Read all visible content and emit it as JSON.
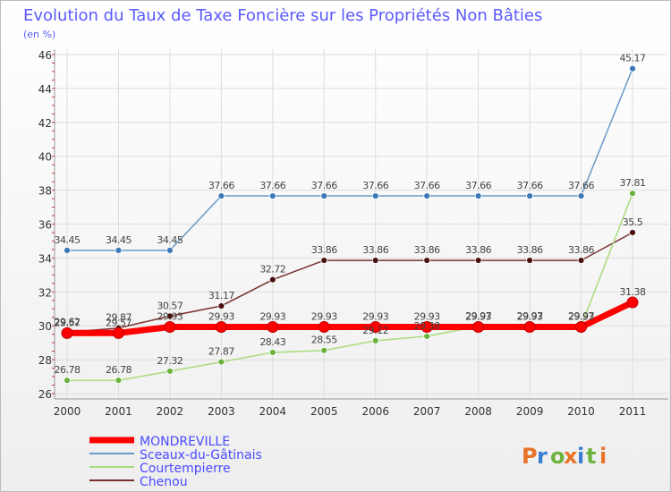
{
  "chart_data": {
    "type": "line",
    "title": "Evolution du Taux de Taxe Foncière sur les Propriétés Non Bâties",
    "ylabel": "(en %)",
    "xlabel": "",
    "categories": [
      "2000",
      "2001",
      "2002",
      "2003",
      "2004",
      "2005",
      "2006",
      "2007",
      "2008",
      "2009",
      "2010",
      "2011"
    ],
    "ylim": [
      26,
      46
    ],
    "yticks": [
      26,
      28,
      30,
      32,
      34,
      36,
      38,
      40,
      42,
      44,
      46
    ],
    "grid": true,
    "legend_position": "bottom-left",
    "series": [
      {
        "name": "MONDREVILLE",
        "color": "#ff0000",
        "values": [
          29.57,
          29.57,
          29.93,
          29.93,
          29.93,
          29.93,
          29.93,
          29.93,
          29.93,
          29.93,
          29.93,
          31.38
        ],
        "labels": [
          "29.57",
          "29.57",
          "29.93",
          "29.93",
          "29.93",
          "29.93",
          "29.93",
          "29.93",
          "29.93",
          "29.93",
          "29.93",
          "31.38"
        ]
      },
      {
        "name": "Sceaux-du-Gâtinais",
        "color": "#6a9ac8",
        "values": [
          34.45,
          34.45,
          34.45,
          37.66,
          37.66,
          37.66,
          37.66,
          37.66,
          37.66,
          37.66,
          37.66,
          45.17
        ],
        "labels": [
          "34.45",
          "34.45",
          "34.45",
          "37.66",
          "37.66",
          "37.66",
          "37.66",
          "37.66",
          "37.66",
          "37.66",
          "37.66",
          "45.17"
        ]
      },
      {
        "name": "Courtempierre",
        "color": "#a8dc7c",
        "values": [
          26.78,
          26.78,
          27.32,
          27.87,
          28.43,
          28.55,
          29.12,
          29.38,
          29.97,
          29.97,
          29.97,
          37.81
        ],
        "labels": [
          "26.78",
          "26.78",
          "27.32",
          "27.87",
          "28.43",
          "28.55",
          "29.12",
          "29.38",
          "29.97",
          "29.97",
          "29.97",
          "37.81"
        ]
      },
      {
        "name": "Chenou",
        "color": "#7a3030",
        "values": [
          29.62,
          29.87,
          30.57,
          31.17,
          32.72,
          33.86,
          33.86,
          33.86,
          33.86,
          33.86,
          33.86,
          35.5
        ],
        "labels": [
          "29.62",
          "29.87",
          "30.57",
          "31.17",
          "32.72",
          "33.86",
          "33.86",
          "33.86",
          "33.86",
          "33.86",
          "33.86",
          "35.5"
        ]
      }
    ]
  },
  "branding": {
    "logo_text": "Proxiti",
    "colors": [
      "#e8742a",
      "#3a7fd5",
      "#6cb33e",
      "#e8742a",
      "#3a7fd5",
      "#6cb33e",
      "#e8742a"
    ]
  }
}
